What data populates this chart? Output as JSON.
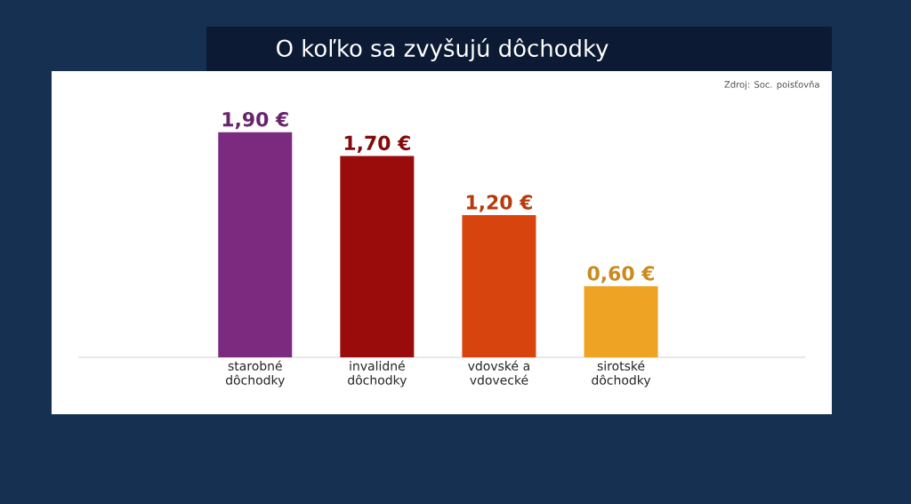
{
  "chart_data": {
    "type": "bar",
    "title": "O koľko sa zvyšujú dôchodky",
    "categories": [
      "starobné dôchodky",
      "invalidné dôchodky",
      "vdovské a vdovecké",
      "sirotské dôchodky"
    ],
    "values": [
      1.9,
      1.7,
      1.2,
      0.6
    ],
    "colors": [
      "#7b2a80",
      "#9a0c0c",
      "#d8440e",
      "#eea325"
    ],
    "value_labels": [
      "1,90 €",
      "1,70 €",
      "1,20 €",
      "0,60 €"
    ],
    "annotations": [
      "Zdroj: Soc. poisťovňa"
    ]
  }
}
